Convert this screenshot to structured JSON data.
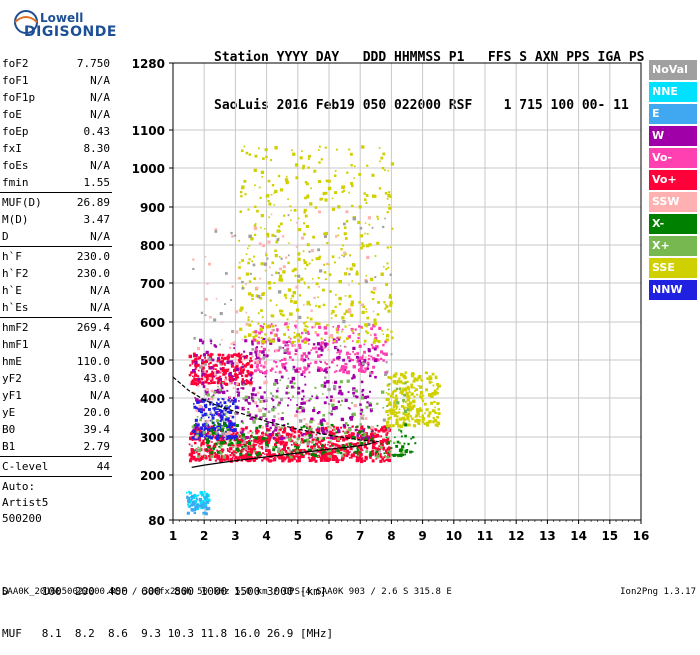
{
  "logo": {
    "line1": "Lowell",
    "line2": "DIGISONDE"
  },
  "header": {
    "labels": "Station YYYY DAY   DDD HHMMSS P1   FFS S AXN PPS IGA PS",
    "values": "SaoLuis 2016 Feb19 050 022000 RSF    1 715 100 00- 11"
  },
  "params": [
    {
      "label": "foF2",
      "value": "7.750"
    },
    {
      "label": "foF1",
      "value": "N/A"
    },
    {
      "label": "foF1p",
      "value": "N/A"
    },
    {
      "label": "foE",
      "value": "N/A"
    },
    {
      "label": "foEp",
      "value": "0.43"
    },
    {
      "label": "fxI",
      "value": "8.30"
    },
    {
      "label": "foEs",
      "value": "N/A"
    },
    {
      "label": "fmin",
      "value": "1.55"
    },
    {
      "sep": true
    },
    {
      "label": "MUF(D)",
      "value": "26.89"
    },
    {
      "label": "M(D)",
      "value": "3.47"
    },
    {
      "label": "D",
      "value": "N/A"
    },
    {
      "sep": true
    },
    {
      "label": "h`F",
      "value": "230.0"
    },
    {
      "label": "h`F2",
      "value": "230.0"
    },
    {
      "label": "h`E",
      "value": "N/A"
    },
    {
      "label": "h`Es",
      "value": "N/A"
    },
    {
      "sep": true
    },
    {
      "label": "hmF2",
      "value": "269.4"
    },
    {
      "label": "hmF1",
      "value": "N/A"
    },
    {
      "label": "hmE",
      "value": "110.0"
    },
    {
      "label": "yF2",
      "value": "43.0"
    },
    {
      "label": "yF1",
      "value": "N/A"
    },
    {
      "label": "yE",
      "value": "20.0"
    },
    {
      "label": "B0",
      "value": "39.4"
    },
    {
      "label": "B1",
      "value": "2.79"
    },
    {
      "sep": true
    },
    {
      "label": "C-level",
      "value": "44"
    },
    {
      "sep": true
    }
  ],
  "auto": {
    "line1": "Auto:",
    "line2": "Artist5",
    "line3": "500200"
  },
  "legend": [
    {
      "label": "NoVal",
      "color": "#a0a0a0"
    },
    {
      "label": "NNE",
      "color": "#00e0ff"
    },
    {
      "label": "E",
      "color": "#40a8f0"
    },
    {
      "label": "W",
      "color": "#a000a8"
    },
    {
      "label": "Vo-",
      "color": "#ff40b0"
    },
    {
      "label": "Vo+",
      "color": "#ff0038"
    },
    {
      "label": "SSW",
      "color": "#ffb0b0"
    },
    {
      "label": "X-",
      "color": "#008000"
    },
    {
      "label": "X+",
      "color": "#78b850"
    },
    {
      "label": "SSE",
      "color": "#d0d000"
    },
    {
      "label": "NNW",
      "color": "#2020e0"
    }
  ],
  "bottom": {
    "d_row": "D     100  200  400  600  800 1000 1500 3000 [km]",
    "muf_row": "MUF   8.1  8.2  8.6  9.3 10.3 11.8 16.0 26.9 [MHz]"
  },
  "footer": {
    "left": "SAA0K_2016050022000.RSF / 300fx256h 50 kHz 5.0 km / DPS-4 SAA0K 903 / 2.6 S 315.8 E",
    "right": "Ion2Png 1.3.17"
  },
  "chart_data": {
    "type": "scatter",
    "x_ticks": [
      "1",
      "2",
      "3",
      "4",
      "5",
      "6",
      "7",
      "8",
      "9",
      "10",
      "11",
      "12",
      "13",
      "14",
      "15",
      "16"
    ],
    "y_ticks": [
      "80",
      "200",
      "300",
      "400",
      "500",
      "600",
      "700",
      "800",
      "900",
      "1000",
      "1100",
      "1280"
    ],
    "xlim": [
      1,
      16
    ],
    "ylim": [
      80,
      1280
    ],
    "y_scale": "nonlinear",
    "grid": true,
    "legend_position": "right",
    "profile_curve": [
      [
        1.6,
        220
      ],
      [
        2.0,
        226
      ],
      [
        3.0,
        238
      ],
      [
        4.0,
        248
      ],
      [
        5.0,
        258
      ],
      [
        6.0,
        268
      ],
      [
        6.8,
        275
      ],
      [
        7.2,
        280
      ],
      [
        7.5,
        287
      ]
    ],
    "trace_curve": [
      [
        1.0,
        455
      ],
      [
        1.5,
        420
      ],
      [
        2.0,
        395
      ],
      [
        2.5,
        378
      ],
      [
        3.0,
        365
      ],
      [
        4.0,
        340
      ],
      [
        5.0,
        320
      ],
      [
        6.0,
        305
      ],
      [
        7.0,
        292
      ],
      [
        7.6,
        288
      ]
    ],
    "echo_regions": [
      {
        "color": "#ff0038",
        "x": [
          1.5,
          7.9
        ],
        "y": [
          240,
          330
        ],
        "density": 900
      },
      {
        "color": "#ff0038",
        "x": [
          1.5,
          3.5
        ],
        "y": [
          440,
          520
        ],
        "density": 260
      },
      {
        "color": "#ff40b0",
        "x": [
          3.5,
          7.8
        ],
        "y": [
          470,
          600
        ],
        "density": 260
      },
      {
        "color": "#a000a8",
        "x": [
          1.6,
          7.5
        ],
        "y": [
          300,
          560
        ],
        "density": 380
      },
      {
        "color": "#2020e0",
        "x": [
          1.6,
          3.0
        ],
        "y": [
          300,
          400
        ],
        "density": 180
      },
      {
        "color": "#d0d000",
        "x": [
          3.0,
          8.0
        ],
        "y": [
          550,
          1060
        ],
        "density": 450
      },
      {
        "color": "#d0d000",
        "x": [
          7.8,
          9.5
        ],
        "y": [
          330,
          470
        ],
        "density": 260
      },
      {
        "color": "#78b850",
        "x": [
          1.6,
          8.5
        ],
        "y": [
          250,
          450
        ],
        "density": 200
      },
      {
        "color": "#008000",
        "x": [
          1.6,
          8.8
        ],
        "y": [
          255,
          340
        ],
        "density": 160
      },
      {
        "color": "#00e0ff",
        "x": [
          1.4,
          2.1
        ],
        "y": [
          115,
          160
        ],
        "density": 60
      },
      {
        "color": "#40a8f0",
        "x": [
          1.4,
          2.1
        ],
        "y": [
          100,
          150
        ],
        "density": 40
      },
      {
        "color": "#ffb0b0",
        "x": [
          1.6,
          7.5
        ],
        "y": [
          300,
          900
        ],
        "density": 140
      },
      {
        "color": "#a0a0a0",
        "x": [
          1.5,
          8.0
        ],
        "y": [
          260,
          900
        ],
        "density": 120
      }
    ]
  }
}
